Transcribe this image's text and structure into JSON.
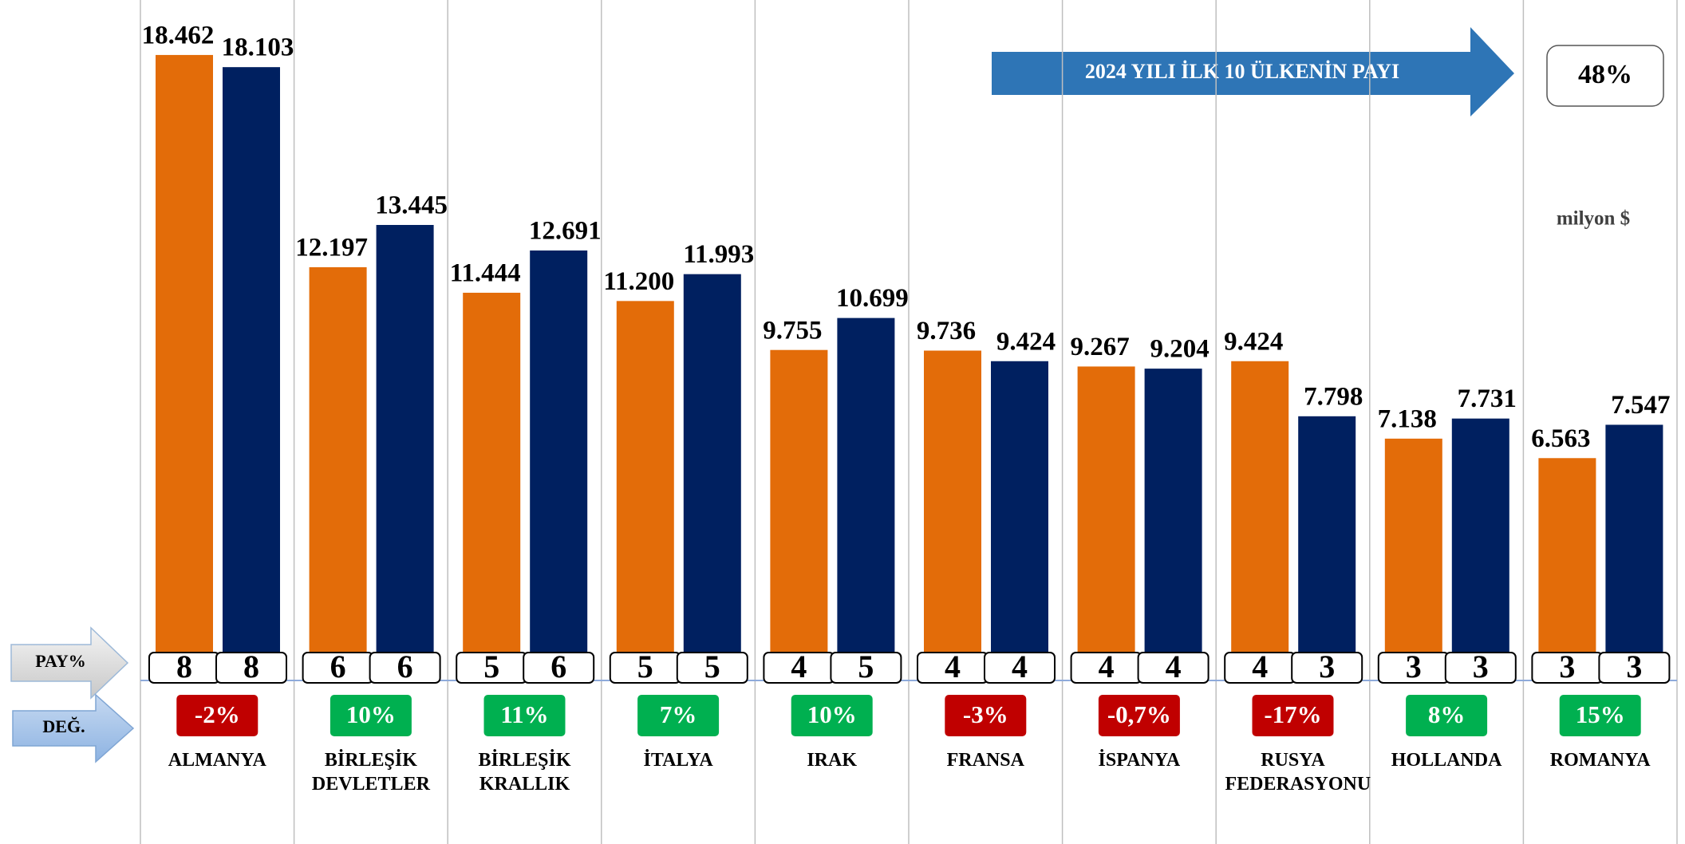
{
  "chart_data": {
    "type": "bar",
    "categories": [
      "ALMANYA",
      "BİRLEŞİK DEVLETLER",
      "BİRLEŞİK KRALLIK",
      "İTALYA",
      "IRAK",
      "FRANSA",
      "İSPANYA",
      "RUSYA FEDERASYONU",
      "HOLLANDA",
      "ROMANYA"
    ],
    "series": [
      {
        "color": "#e36c09",
        "values": [
          18462,
          12197,
          11444,
          11200,
          9755,
          9736,
          9267,
          9424,
          7138,
          6563
        ],
        "value_labels": [
          "18.462",
          "12.197",
          "11.444",
          "11.200",
          "9.755",
          "9.736",
          "9.267",
          "9.424",
          "7.138",
          "6.563"
        ],
        "pay": [
          8,
          6,
          5,
          5,
          4,
          4,
          4,
          4,
          3,
          3
        ]
      },
      {
        "color": "#002060",
        "values": [
          18103,
          13445,
          12691,
          11993,
          10699,
          9424,
          9204,
          7798,
          7731,
          7547
        ],
        "value_labels": [
          "18.103",
          "13.445",
          "12.691",
          "11.993",
          "10.699",
          "9.424",
          "9.204",
          "7.798",
          "7.731",
          "7.547"
        ],
        "pay": [
          8,
          6,
          6,
          5,
          5,
          4,
          4,
          3,
          3,
          3
        ]
      }
    ],
    "change": [
      -2,
      10,
      11,
      7,
      10,
      -3,
      -0.7,
      -17,
      8,
      15
    ],
    "change_labels": [
      "-2%",
      "10%",
      "11%",
      "7%",
      "10%",
      "-3%",
      "-0,7%",
      "-17%",
      "8%",
      "15%"
    ],
    "pay_label": "PAY%",
    "change_label": "DEĞ.",
    "unit": "milyon $",
    "share_title": "2024 YILI İLK 10 ÜLKENİN PAYI",
    "share": {
      "value": 48,
      "label": "48%"
    },
    "positive_color": "#00b050",
    "negative_color": "#c00000"
  }
}
